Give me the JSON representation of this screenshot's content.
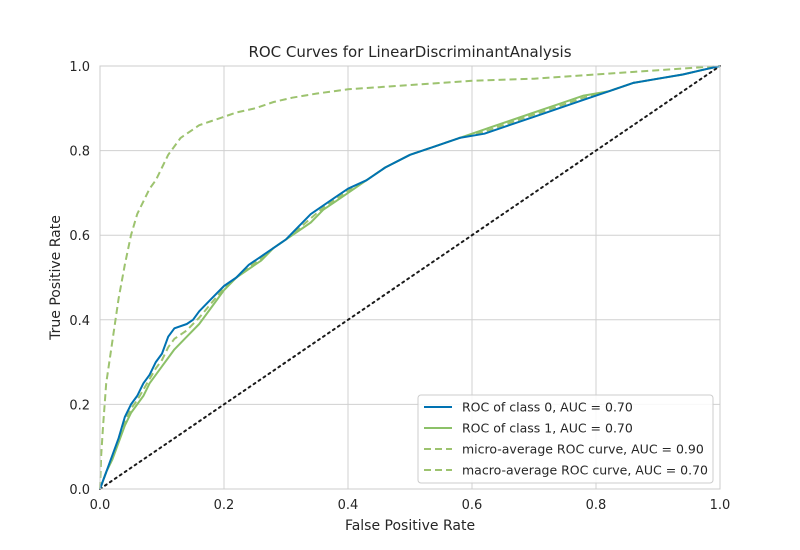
{
  "chart_data": {
    "type": "line",
    "title": "ROC Curves for LinearDiscriminantAnalysis",
    "xlabel": "False Positive Rate",
    "ylabel": "True Positive Rate",
    "xlim": [
      0.0,
      1.0
    ],
    "ylim": [
      0.0,
      1.0
    ],
    "xticks": [
      "0.0",
      "0.2",
      "0.4",
      "0.6",
      "0.8",
      "1.0"
    ],
    "yticks": [
      "0.0",
      "0.2",
      "0.4",
      "0.6",
      "0.8",
      "1.0"
    ],
    "grid": true,
    "legend_position": "lower-right",
    "series": [
      {
        "name": "ROC of class 0, AUC = 0.70",
        "color": "#0072b2",
        "dash": "solid",
        "points": [
          [
            0,
            0
          ],
          [
            0.005,
            0.02
          ],
          [
            0.01,
            0.04
          ],
          [
            0.02,
            0.08
          ],
          [
            0.03,
            0.12
          ],
          [
            0.04,
            0.17
          ],
          [
            0.05,
            0.2
          ],
          [
            0.06,
            0.22
          ],
          [
            0.07,
            0.25
          ],
          [
            0.08,
            0.27
          ],
          [
            0.09,
            0.3
          ],
          [
            0.1,
            0.32
          ],
          [
            0.11,
            0.36
          ],
          [
            0.12,
            0.38
          ],
          [
            0.14,
            0.39
          ],
          [
            0.15,
            0.4
          ],
          [
            0.16,
            0.42
          ],
          [
            0.18,
            0.45
          ],
          [
            0.2,
            0.48
          ],
          [
            0.22,
            0.5
          ],
          [
            0.24,
            0.53
          ],
          [
            0.26,
            0.55
          ],
          [
            0.28,
            0.57
          ],
          [
            0.3,
            0.59
          ],
          [
            0.32,
            0.62
          ],
          [
            0.34,
            0.65
          ],
          [
            0.36,
            0.67
          ],
          [
            0.38,
            0.69
          ],
          [
            0.4,
            0.71
          ],
          [
            0.43,
            0.73
          ],
          [
            0.46,
            0.76
          ],
          [
            0.5,
            0.79
          ],
          [
            0.54,
            0.81
          ],
          [
            0.58,
            0.83
          ],
          [
            0.62,
            0.84
          ],
          [
            0.66,
            0.86
          ],
          [
            0.7,
            0.88
          ],
          [
            0.74,
            0.9
          ],
          [
            0.78,
            0.92
          ],
          [
            0.82,
            0.94
          ],
          [
            0.86,
            0.96
          ],
          [
            0.9,
            0.97
          ],
          [
            0.94,
            0.98
          ],
          [
            0.97,
            0.99
          ],
          [
            1.0,
            1.0
          ]
        ]
      },
      {
        "name": "ROC of class 1, AUC = 0.70",
        "color": "#8cc168",
        "dash": "solid",
        "points": [
          [
            0,
            0
          ],
          [
            0.005,
            0.02
          ],
          [
            0.01,
            0.04
          ],
          [
            0.02,
            0.07
          ],
          [
            0.03,
            0.11
          ],
          [
            0.04,
            0.15
          ],
          [
            0.05,
            0.18
          ],
          [
            0.06,
            0.2
          ],
          [
            0.07,
            0.22
          ],
          [
            0.08,
            0.25
          ],
          [
            0.09,
            0.27
          ],
          [
            0.1,
            0.29
          ],
          [
            0.11,
            0.31
          ],
          [
            0.12,
            0.33
          ],
          [
            0.14,
            0.36
          ],
          [
            0.16,
            0.39
          ],
          [
            0.18,
            0.43
          ],
          [
            0.2,
            0.47
          ],
          [
            0.22,
            0.5
          ],
          [
            0.24,
            0.52
          ],
          [
            0.26,
            0.54
          ],
          [
            0.28,
            0.57
          ],
          [
            0.3,
            0.59
          ],
          [
            0.32,
            0.61
          ],
          [
            0.34,
            0.63
          ],
          [
            0.36,
            0.66
          ],
          [
            0.38,
            0.68
          ],
          [
            0.4,
            0.7
          ],
          [
            0.43,
            0.73
          ],
          [
            0.46,
            0.76
          ],
          [
            0.5,
            0.79
          ],
          [
            0.54,
            0.81
          ],
          [
            0.58,
            0.83
          ],
          [
            0.62,
            0.85
          ],
          [
            0.66,
            0.87
          ],
          [
            0.7,
            0.89
          ],
          [
            0.74,
            0.91
          ],
          [
            0.78,
            0.93
          ],
          [
            0.82,
            0.94
          ],
          [
            0.86,
            0.96
          ],
          [
            0.9,
            0.97
          ],
          [
            0.94,
            0.98
          ],
          [
            0.97,
            0.99
          ],
          [
            1.0,
            1.0
          ]
        ]
      },
      {
        "name": "micro-average ROC curve, AUC = 0.90",
        "color": "#9dc36f",
        "dash": "dashed",
        "points": [
          [
            0,
            0
          ],
          [
            0.002,
            0.08
          ],
          [
            0.005,
            0.15
          ],
          [
            0.01,
            0.25
          ],
          [
            0.02,
            0.35
          ],
          [
            0.03,
            0.45
          ],
          [
            0.04,
            0.53
          ],
          [
            0.05,
            0.6
          ],
          [
            0.06,
            0.65
          ],
          [
            0.07,
            0.68
          ],
          [
            0.08,
            0.71
          ],
          [
            0.09,
            0.73
          ],
          [
            0.1,
            0.76
          ],
          [
            0.11,
            0.79
          ],
          [
            0.12,
            0.81
          ],
          [
            0.13,
            0.83
          ],
          [
            0.14,
            0.84
          ],
          [
            0.16,
            0.86
          ],
          [
            0.18,
            0.87
          ],
          [
            0.2,
            0.88
          ],
          [
            0.22,
            0.89
          ],
          [
            0.25,
            0.9
          ],
          [
            0.28,
            0.915
          ],
          [
            0.31,
            0.925
          ],
          [
            0.35,
            0.935
          ],
          [
            0.4,
            0.945
          ],
          [
            0.45,
            0.95
          ],
          [
            0.5,
            0.955
          ],
          [
            0.6,
            0.965
          ],
          [
            0.7,
            0.97
          ],
          [
            0.8,
            0.98
          ],
          [
            0.9,
            0.99
          ],
          [
            1.0,
            1.0
          ]
        ]
      },
      {
        "name": "macro-average ROC curve, AUC = 0.70",
        "color": "#9dc36f",
        "dash": "dashed",
        "points": [
          [
            0,
            0
          ],
          [
            0.005,
            0.02
          ],
          [
            0.01,
            0.04
          ],
          [
            0.02,
            0.075
          ],
          [
            0.03,
            0.115
          ],
          [
            0.04,
            0.16
          ],
          [
            0.05,
            0.19
          ],
          [
            0.06,
            0.21
          ],
          [
            0.07,
            0.235
          ],
          [
            0.08,
            0.26
          ],
          [
            0.09,
            0.285
          ],
          [
            0.1,
            0.305
          ],
          [
            0.11,
            0.335
          ],
          [
            0.12,
            0.355
          ],
          [
            0.14,
            0.375
          ],
          [
            0.16,
            0.405
          ],
          [
            0.18,
            0.44
          ],
          [
            0.2,
            0.475
          ],
          [
            0.22,
            0.5
          ],
          [
            0.24,
            0.525
          ],
          [
            0.26,
            0.545
          ],
          [
            0.28,
            0.57
          ],
          [
            0.3,
            0.59
          ],
          [
            0.32,
            0.615
          ],
          [
            0.34,
            0.64
          ],
          [
            0.36,
            0.665
          ],
          [
            0.38,
            0.685
          ],
          [
            0.4,
            0.705
          ],
          [
            0.43,
            0.73
          ],
          [
            0.46,
            0.76
          ],
          [
            0.5,
            0.79
          ],
          [
            0.54,
            0.81
          ],
          [
            0.58,
            0.83
          ],
          [
            0.62,
            0.845
          ],
          [
            0.66,
            0.865
          ],
          [
            0.7,
            0.885
          ],
          [
            0.74,
            0.905
          ],
          [
            0.78,
            0.925
          ],
          [
            0.82,
            0.94
          ],
          [
            0.86,
            0.96
          ],
          [
            0.9,
            0.97
          ],
          [
            0.94,
            0.98
          ],
          [
            0.97,
            0.99
          ],
          [
            1.0,
            1.0
          ]
        ]
      },
      {
        "name": "",
        "color": "#1a1a1a",
        "dash": "dotted",
        "points": [
          [
            0,
            0
          ],
          [
            1,
            1
          ]
        ]
      }
    ]
  }
}
